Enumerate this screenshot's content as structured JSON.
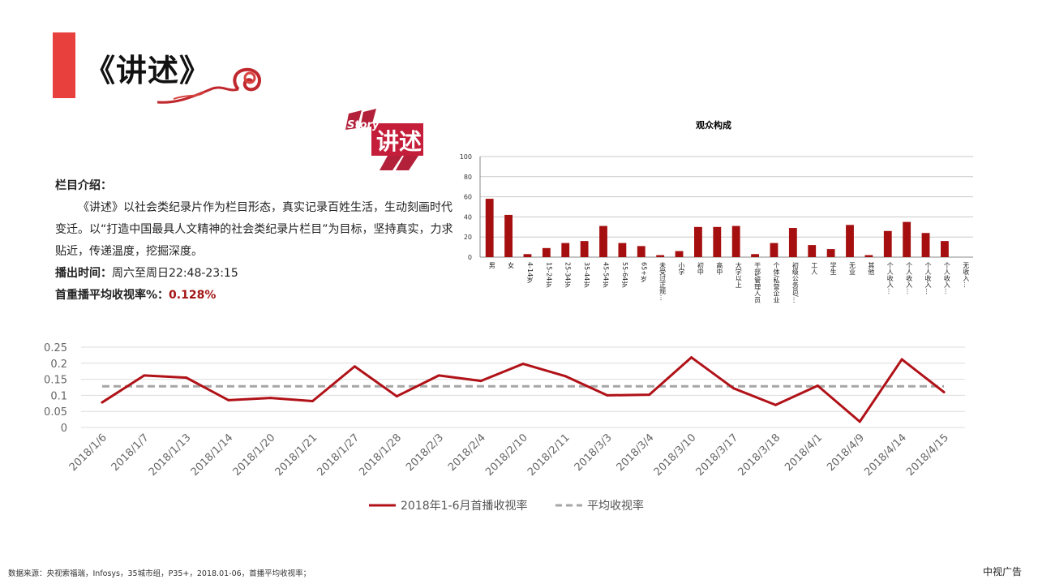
{
  "header": {
    "title": "《讲述》",
    "logo_text_story": "Story",
    "logo_text_main": "讲述"
  },
  "intro": {
    "heading": "栏目介绍：",
    "body": "《讲述》以社会类纪录片作为栏目形态，真实记录百姓生活，生动刻画时代变迁。以“打造中国最具人文精神的社会类纪录片栏目”为目标，坚持真实，力求贴近，传递温度，挖掘深度。",
    "air_label": "播出时间：",
    "air_value": "周六至周日22:48-23:15",
    "rating_label": "首重播平均收视率%：",
    "rating_value": "0.128%"
  },
  "colors": {
    "accent": "#e8413d",
    "bar": "#a50f0f",
    "line": "#b01218",
    "average": "#a6a6a6"
  },
  "chart_data": [
    {
      "type": "bar",
      "title": "观众构成",
      "categories": [
        "男",
        "女",
        "4-14岁",
        "15-24岁",
        "25-34岁",
        "35-44岁",
        "45-54岁",
        "55-64岁",
        "65+岁",
        "未受过正规…",
        "小学",
        "初中",
        "高中",
        "大学以上",
        "干部/管理人员",
        "个体/私营企业",
        "初级公务员/…",
        "工人",
        "学生",
        "无业",
        "其他",
        "个人收入…",
        "个人收入…",
        "个人收入…",
        "个人收入…",
        "无收入…"
      ],
      "values": [
        58,
        42,
        3,
        9,
        14,
        16,
        31,
        14,
        11,
        2,
        6,
        30,
        30,
        31,
        3,
        14,
        29,
        12,
        8,
        32,
        2,
        26,
        35,
        24,
        16,
        0
      ],
      "ylim": [
        0,
        100
      ],
      "yticks": [
        "0",
        "20",
        "40",
        "60",
        "80",
        "100"
      ],
      "grid": true
    },
    {
      "type": "line",
      "categories": [
        "2018/1/6",
        "2018/1/7",
        "2018/1/13",
        "2018/1/14",
        "2018/1/20",
        "2018/1/21",
        "2018/1/27",
        "2018/1/28",
        "2018/2/3",
        "2018/2/4",
        "2018/2/10",
        "2018/2/11",
        "2018/3/3",
        "2018/3/4",
        "2018/3/10",
        "2018/3/17",
        "2018/3/18",
        "2018/4/1",
        "2018/4/9",
        "2018/4/14",
        "2018/4/15"
      ],
      "series": [
        {
          "name": "2018年1-6月首播收视率",
          "values": [
            0.078,
            0.162,
            0.155,
            0.085,
            0.092,
            0.082,
            0.19,
            0.097,
            0.162,
            0.145,
            0.198,
            0.16,
            0.1,
            0.102,
            0.218,
            0.122,
            0.07,
            0.13,
            0.018,
            0.212,
            0.11
          ]
        },
        {
          "name": "平均收视率",
          "values": [
            0.128,
            0.128,
            0.128,
            0.128,
            0.128,
            0.128,
            0.128,
            0.128,
            0.128,
            0.128,
            0.128,
            0.128,
            0.128,
            0.128,
            0.128,
            0.128,
            0.128,
            0.128,
            0.128,
            0.128,
            0.128
          ]
        }
      ],
      "ylim": [
        0,
        0.25
      ],
      "yticks": [
        "0",
        "0.05",
        "0.1",
        "0.15",
        "0.2",
        "0.25"
      ],
      "grid": true,
      "legend": "bottom"
    }
  ],
  "footer": {
    "source": "数据来源：央视索福瑞，Infosys，35城市组，P35+，2018.01-06，首播平均收视率；",
    "brand": "中视广告"
  }
}
